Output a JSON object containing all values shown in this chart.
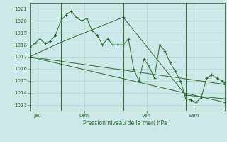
{
  "bg_color": "#cce8e8",
  "grid_color": "#aacccc",
  "line_color": "#2d6a2d",
  "xlabel": "Pression niveau de la mer( hPa )",
  "tick_color": "#2d6a2d",
  "ylim": [
    1012.5,
    1021.5
  ],
  "yticks": [
    1013,
    1014,
    1015,
    1016,
    1017,
    1018,
    1019,
    1020,
    1021
  ],
  "xlim": [
    0,
    300
  ],
  "day_positions": [
    12,
    84,
    180,
    252
  ],
  "day_labels": [
    "Jeu",
    "Dim",
    "Ven",
    "Sam"
  ],
  "vline_positions": [
    48,
    144,
    240
  ],
  "series1_x": [
    0,
    8,
    16,
    24,
    32,
    40,
    48,
    56,
    64,
    72,
    80,
    88,
    96,
    104,
    112,
    120,
    128,
    136,
    144,
    152,
    160,
    168,
    176,
    184,
    192,
    200,
    208,
    216,
    224,
    232,
    240,
    248,
    256,
    264,
    272,
    280,
    288,
    296,
    300
  ],
  "series1_y": [
    1017.8,
    1018.1,
    1018.5,
    1018.1,
    1018.3,
    1018.8,
    1020.0,
    1020.5,
    1020.8,
    1020.3,
    1020.0,
    1020.2,
    1019.2,
    1018.8,
    1018.0,
    1018.5,
    1018.0,
    1018.0,
    1018.0,
    1018.5,
    1016.0,
    1015.0,
    1016.8,
    1016.2,
    1015.2,
    1018.0,
    1017.5,
    1016.5,
    1015.8,
    1015.0,
    1013.5,
    1013.4,
    1013.2,
    1013.6,
    1015.2,
    1015.5,
    1015.2,
    1015.0,
    1014.8
  ],
  "series2_x": [
    0,
    300
  ],
  "series2_y": [
    1017.0,
    1013.2
  ],
  "series3_x": [
    0,
    48,
    144,
    240,
    300
  ],
  "series3_y": [
    1017.0,
    1018.2,
    1020.3,
    1013.8,
    1013.5
  ],
  "series4_x": [
    0,
    300
  ],
  "series4_y": [
    1017.0,
    1014.7
  ]
}
